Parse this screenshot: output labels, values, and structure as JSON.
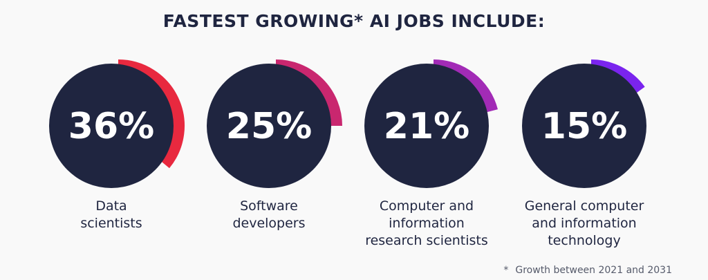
{
  "chart_data": {
    "type": "pie",
    "title": "FASTEST GROWING* AI JOBS INCLUDE:",
    "unit": "%",
    "items": [
      {
        "label": [
          "Data",
          "scientists"
        ],
        "value": 36,
        "display": "36%",
        "color": "#e8293f"
      },
      {
        "label": [
          "Software",
          "developers"
        ],
        "value": 25,
        "display": "25%",
        "color": "#c9276f"
      },
      {
        "label": [
          "Computer and",
          "information",
          "research scientists"
        ],
        "value": 21,
        "display": "21%",
        "color": "#a22bb6"
      },
      {
        "label": [
          "General computer",
          "and information",
          "technology"
        ],
        "value": 15,
        "display": "15%",
        "color": "#7a24ee"
      }
    ],
    "footnote_marker": "*",
    "footnote": "Growth between 2021 and 2031",
    "circle_color": "#1f2540"
  }
}
